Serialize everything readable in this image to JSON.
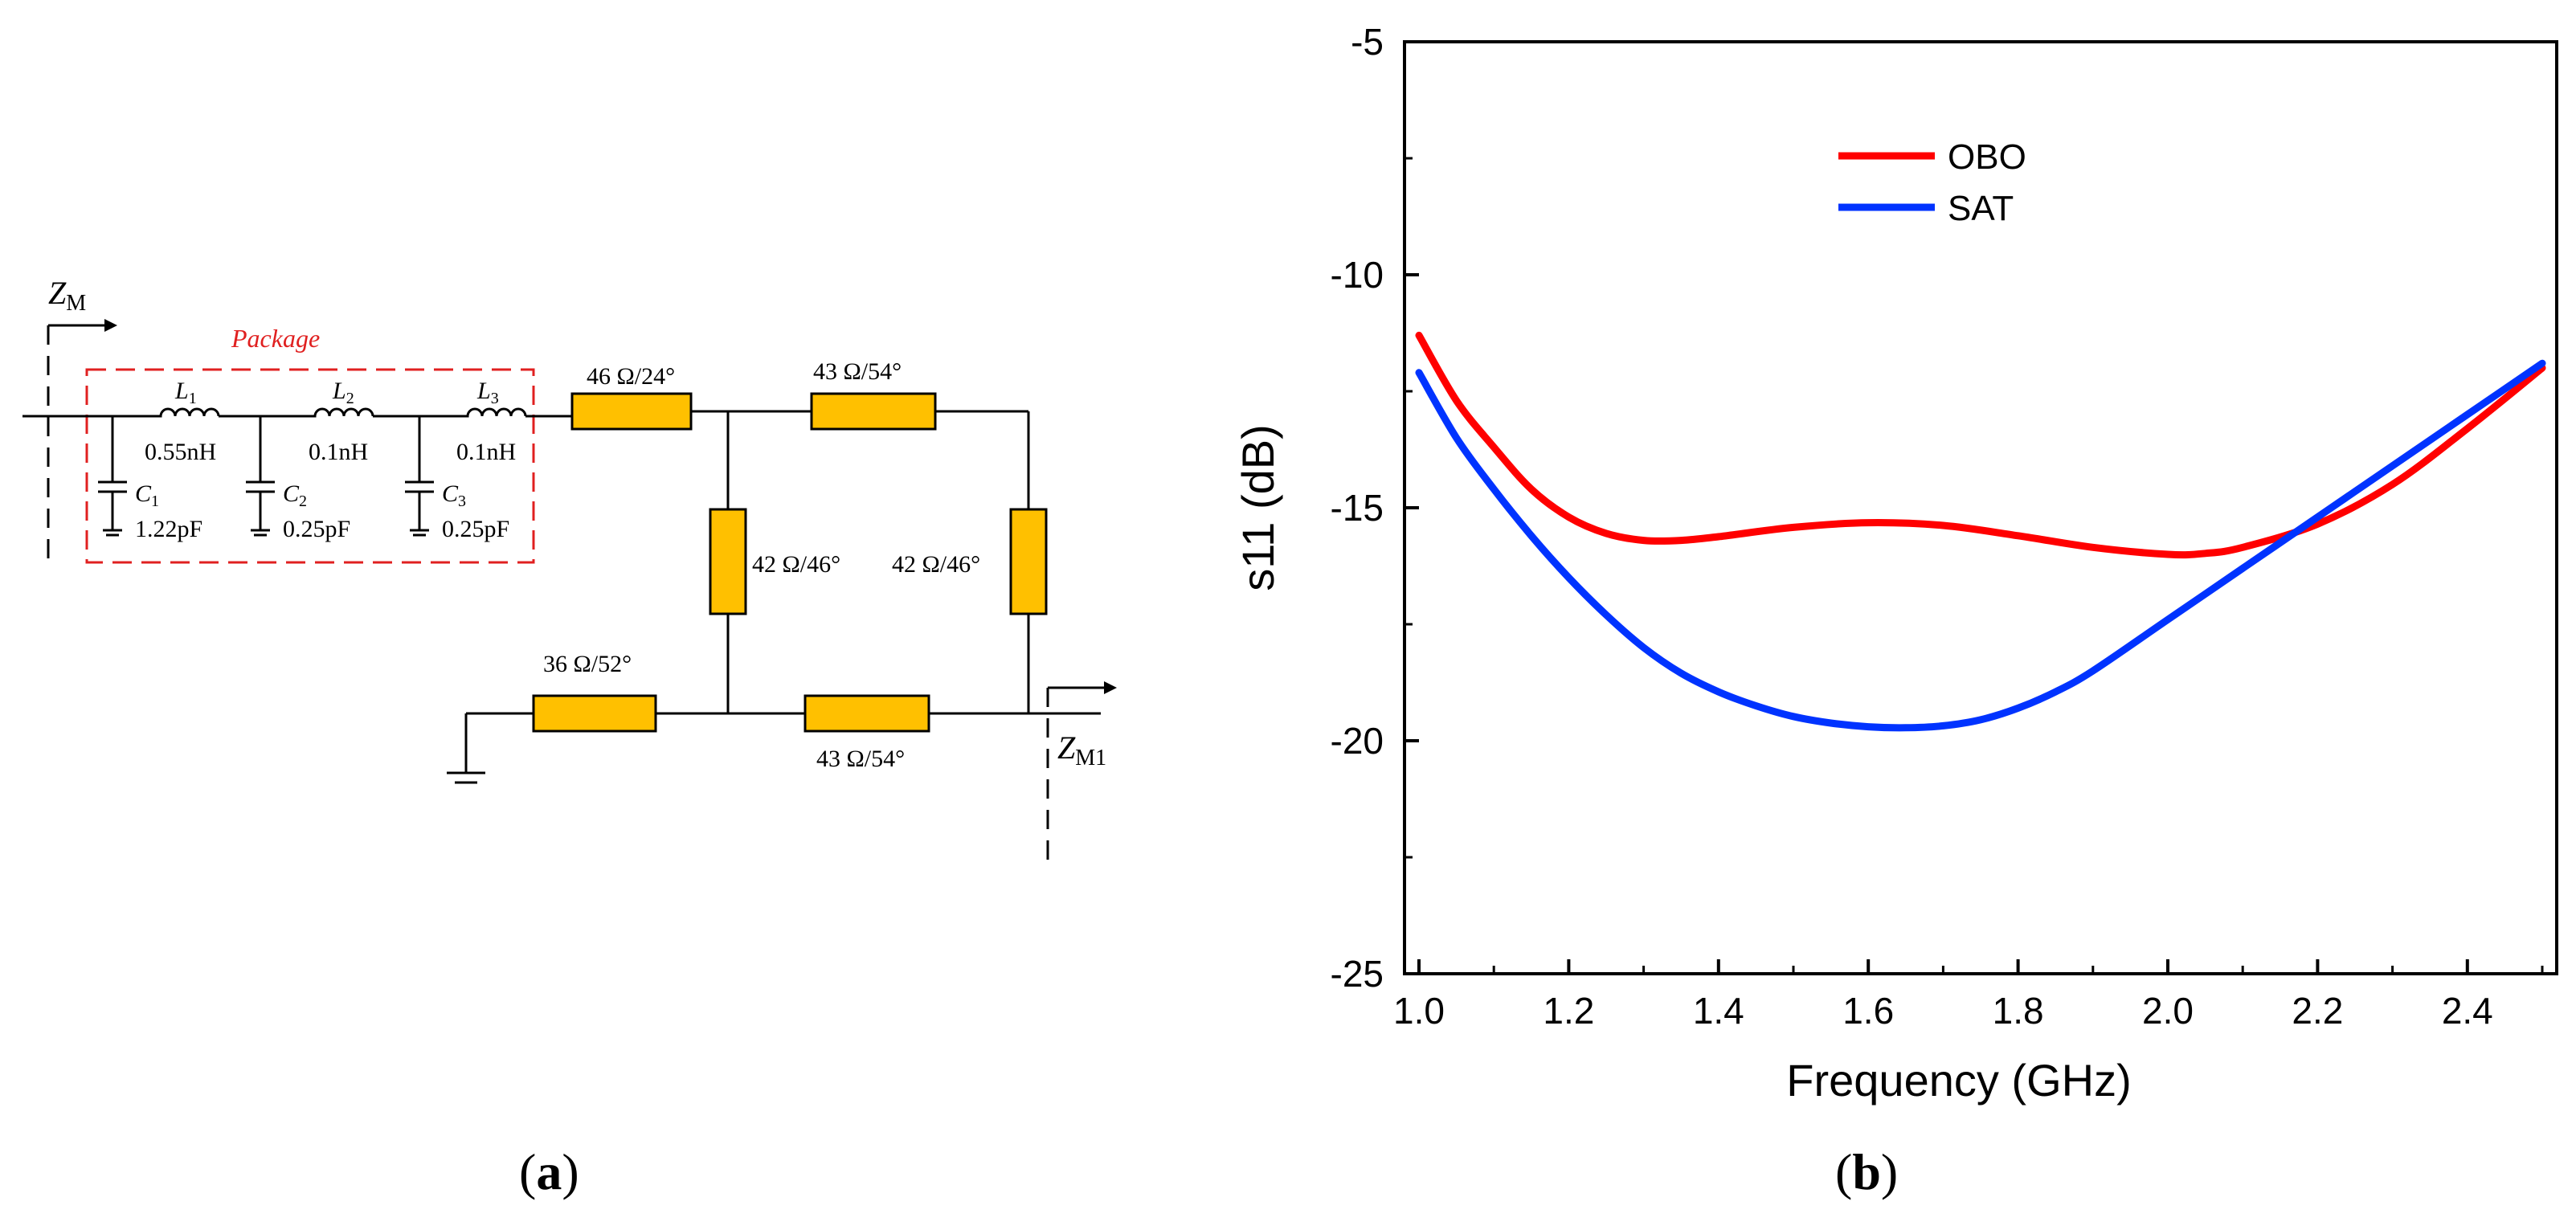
{
  "circuit": {
    "port_in": "Z",
    "port_in_sub": "M",
    "port_out": "Z",
    "port_out_sub": "M1",
    "package_label": "Package",
    "package_color": "#E02020",
    "inductors": [
      {
        "name": "L",
        "index": "1",
        "value": "0.55nH"
      },
      {
        "name": "L",
        "index": "2",
        "value": "0.1nH"
      },
      {
        "name": "L",
        "index": "3",
        "value": "0.1nH"
      }
    ],
    "capacitors": [
      {
        "name": "C",
        "index": "1",
        "value": "1.22pF"
      },
      {
        "name": "C",
        "index": "2",
        "value": "0.25pF"
      },
      {
        "name": "C",
        "index": "3",
        "value": "0.25pF"
      }
    ],
    "tlines": [
      {
        "id": "tl1",
        "label": "46 Ω/24°"
      },
      {
        "id": "tl2",
        "label": "43 Ω/54°"
      },
      {
        "id": "tl3",
        "label": "42 Ω/46°"
      },
      {
        "id": "tl4",
        "label": "42 Ω/46°"
      },
      {
        "id": "tl5",
        "label": "36 Ω/52°"
      },
      {
        "id": "tl6",
        "label": "43 Ω/54°"
      }
    ],
    "tline_color": "#FFC000",
    "panel_label": "a"
  },
  "chart_data": {
    "type": "line",
    "title": "",
    "xlabel": "Frequency (GHz)",
    "ylabel": "s11 (dB)",
    "xlim": [
      1.0,
      2.5
    ],
    "ylim": [
      -25,
      -5
    ],
    "xticks": [
      "1.0",
      "1.2",
      "1.4",
      "1.6",
      "1.8",
      "2.0",
      "2.2",
      "2.4"
    ],
    "yticks": [
      "-5",
      "-10",
      "-15",
      "-20",
      "-25"
    ],
    "legend_position": "top-center",
    "series": [
      {
        "name": "OBO",
        "color": "#FF0000",
        "x": [
          1.0,
          1.05,
          1.1,
          1.15,
          1.2,
          1.25,
          1.3,
          1.35,
          1.4,
          1.5,
          1.6,
          1.7,
          1.8,
          1.9,
          2.0,
          2.05,
          2.1,
          2.2,
          2.3,
          2.4,
          2.5
        ],
        "values": [
          -11.3,
          -12.7,
          -13.7,
          -14.6,
          -15.2,
          -15.55,
          -15.7,
          -15.7,
          -15.62,
          -15.42,
          -15.32,
          -15.38,
          -15.6,
          -15.85,
          -16.0,
          -15.98,
          -15.85,
          -15.35,
          -14.5,
          -13.3,
          -12.0
        ]
      },
      {
        "name": "SAT",
        "color": "#0033FF",
        "x": [
          1.0,
          1.05,
          1.1,
          1.15,
          1.2,
          1.25,
          1.3,
          1.35,
          1.4,
          1.45,
          1.5,
          1.55,
          1.6,
          1.65,
          1.7,
          1.75,
          1.8,
          1.85,
          1.9,
          2.0,
          2.1,
          2.2,
          2.3,
          2.4,
          2.5
        ],
        "values": [
          -12.1,
          -13.5,
          -14.6,
          -15.6,
          -16.5,
          -17.3,
          -18.0,
          -18.55,
          -18.95,
          -19.25,
          -19.48,
          -19.62,
          -19.7,
          -19.72,
          -19.68,
          -19.55,
          -19.3,
          -18.95,
          -18.5,
          -17.4,
          -16.3,
          -15.2,
          -14.1,
          -13.0,
          -11.9
        ]
      }
    ],
    "panel_label": "b"
  }
}
